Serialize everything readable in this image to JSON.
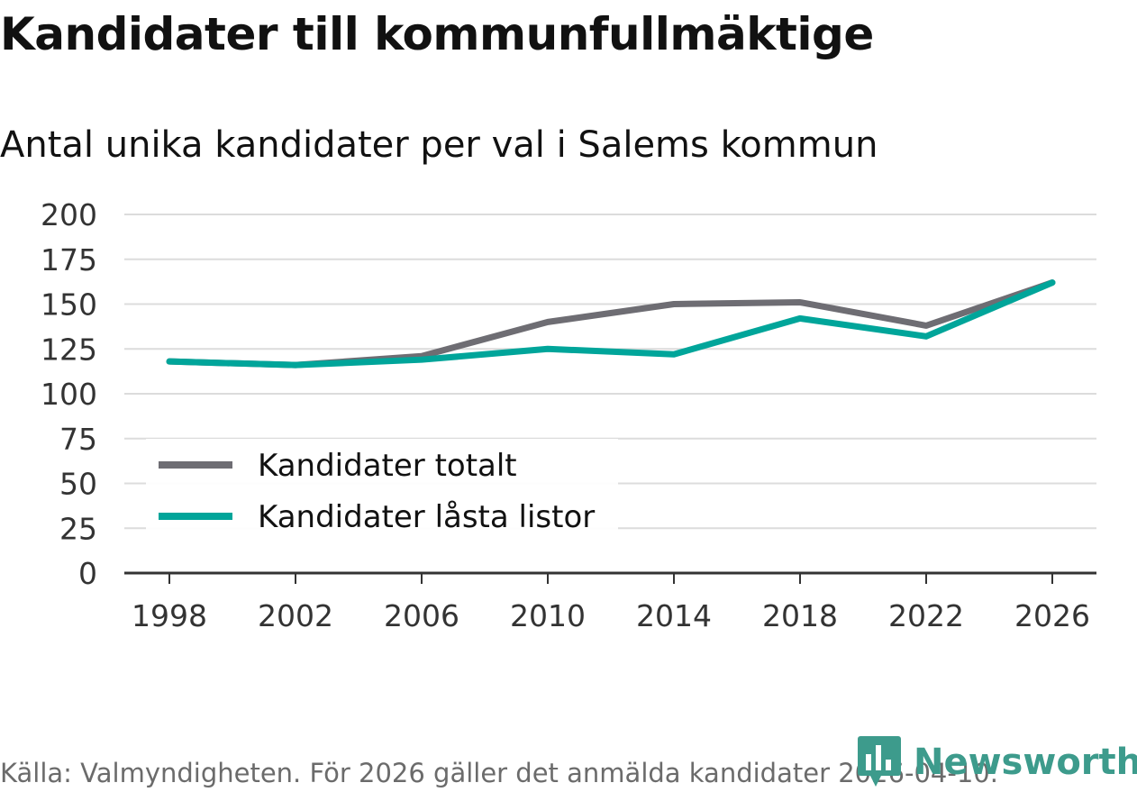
{
  "header": {
    "title": "Kandidater till kommunfullmäktige",
    "subtitle": "Antal unika kandidater per val i Salems kommun"
  },
  "footer": {
    "source": "Källa: Valmyndigheten. För 2026 gäller det anmälda kandidater 2026-04-10."
  },
  "brand": {
    "name": "Newsworthy",
    "color": "#3d9b8c"
  },
  "chart_data": {
    "type": "line",
    "title": "Kandidater till kommunfullmäktige",
    "subtitle": "Antal unika kandidater per val i Salems kommun",
    "xlabel": "",
    "ylabel": "",
    "categories": [
      "1998",
      "2002",
      "2006",
      "2010",
      "2014",
      "2018",
      "2022",
      "2026"
    ],
    "ylim": [
      0,
      200
    ],
    "yticks": [
      "0",
      "25",
      "50",
      "75",
      "100",
      "125",
      "150",
      "175",
      "200"
    ],
    "grid": true,
    "legend_position": "bottom-left",
    "series": [
      {
        "name": "Kandidater totalt",
        "color": "#6e6d73",
        "values": [
          118,
          116,
          121,
          140,
          150,
          151,
          138,
          162
        ]
      },
      {
        "name": "Kandidater låsta listor",
        "color": "#00a59a",
        "values": [
          118,
          116,
          119,
          125,
          122,
          142,
          132,
          162
        ]
      }
    ]
  }
}
